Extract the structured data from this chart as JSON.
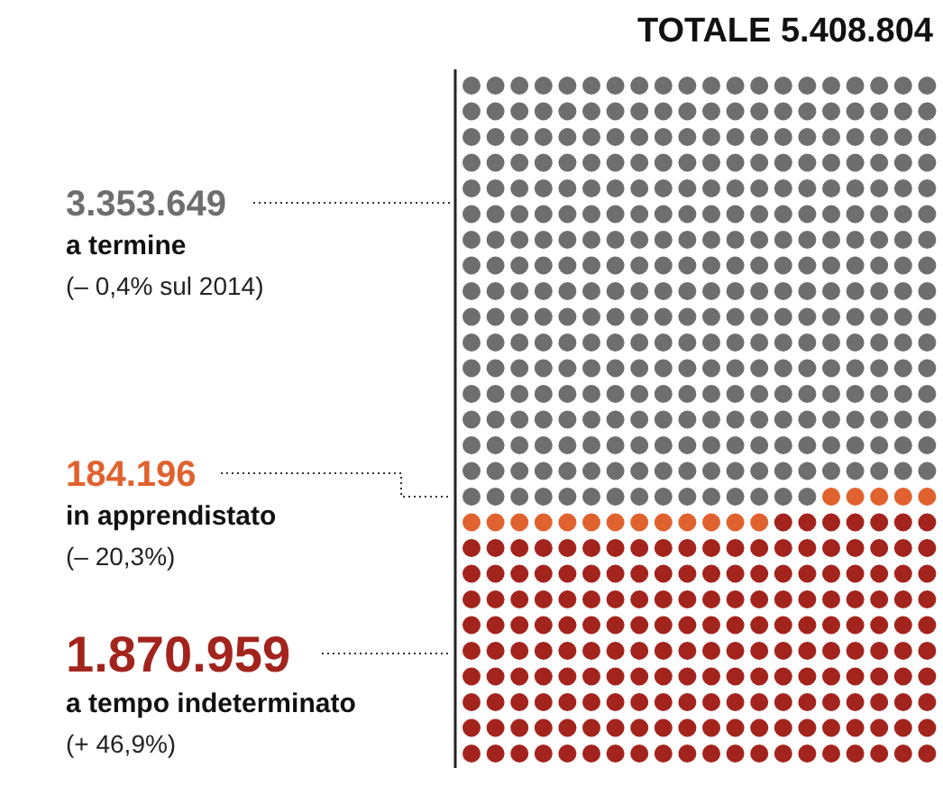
{
  "chart_data": {
    "type": "other",
    "title": "TOTALE 5.408.804",
    "categories": [
      "a termine",
      "in apprendistato",
      "a tempo indeterminato"
    ],
    "values": [
      3353649,
      184196,
      1870959
    ],
    "value_labels": [
      "3.353.649",
      "184.196",
      "1.870.959"
    ],
    "colors": [
      "#6e6e6e",
      "#e0622e",
      "#a3241d"
    ],
    "annotations": [
      "(– 0,4% sul 2014)",
      "(– 20,3%)",
      "(+ 46,9%)"
    ]
  }
}
